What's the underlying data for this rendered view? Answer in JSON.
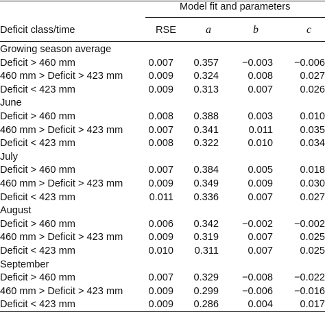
{
  "table": {
    "group_header": "Model fit and parameters",
    "columns": [
      "Deficit class/time",
      "RSE",
      "a",
      "b",
      "c"
    ],
    "sections": [
      {
        "label": "Growing season average",
        "rows": [
          {
            "class": "Deficit > 460 mm",
            "rse": "0.007",
            "a": "0.357",
            "b": "−0.003",
            "c": "−0.006"
          },
          {
            "class": "460 mm > Deficit > 423 mm",
            "rse": "0.009",
            "a": "0.324",
            "b": "0.008",
            "c": "0.027"
          },
          {
            "class": "Deficit < 423 mm",
            "rse": "0.009",
            "a": "0.313",
            "b": "0.007",
            "c": "0.026"
          }
        ]
      },
      {
        "label": "June",
        "rows": [
          {
            "class": "Deficit > 460 mm",
            "rse": "0.008",
            "a": "0.388",
            "b": "0.003",
            "c": "0.010"
          },
          {
            "class": "460 mm > Deficit > 423 mm",
            "rse": "0.007",
            "a": "0.341",
            "b": "0.011",
            "c": "0.035"
          },
          {
            "class": "Deficit < 423 mm",
            "rse": "0.008",
            "a": "0.322",
            "b": "0.010",
            "c": "0.034"
          }
        ]
      },
      {
        "label": "July",
        "rows": [
          {
            "class": "Deficit > 460 mm",
            "rse": "0.007",
            "a": "0.384",
            "b": "0.005",
            "c": "0.018"
          },
          {
            "class": "460 mm > Deficit > 423 mm",
            "rse": "0.009",
            "a": "0.349",
            "b": "0.009",
            "c": "0.030"
          },
          {
            "class": "Deficit < 423 mm",
            "rse": "0.011",
            "a": "0.336",
            "b": "0.007",
            "c": "0.027"
          }
        ]
      },
      {
        "label": "August",
        "rows": [
          {
            "class": "Deficit > 460 mm",
            "rse": "0.006",
            "a": "0.342",
            "b": "−0.002",
            "c": "−0.002"
          },
          {
            "class": "460 mm > Deficit > 423 mm",
            "rse": "0.009",
            "a": "0.319",
            "b": "0.007",
            "c": "0.025"
          },
          {
            "class": "Deficit < 423 mm",
            "rse": "0.010",
            "a": "0.311",
            "b": "0.007",
            "c": "0.025"
          }
        ]
      },
      {
        "label": "September",
        "rows": [
          {
            "class": "Deficit > 460 mm",
            "rse": "0.007",
            "a": "0.329",
            "b": "−0.008",
            "c": "−0.022"
          },
          {
            "class": "460 mm > Deficit > 423 mm",
            "rse": "0.009",
            "a": "0.299",
            "b": "−0.006",
            "c": "−0.016"
          },
          {
            "class": "Deficit < 423 mm",
            "rse": "0.009",
            "a": "0.286",
            "b": "0.004",
            "c": "0.017"
          }
        ]
      }
    ]
  }
}
